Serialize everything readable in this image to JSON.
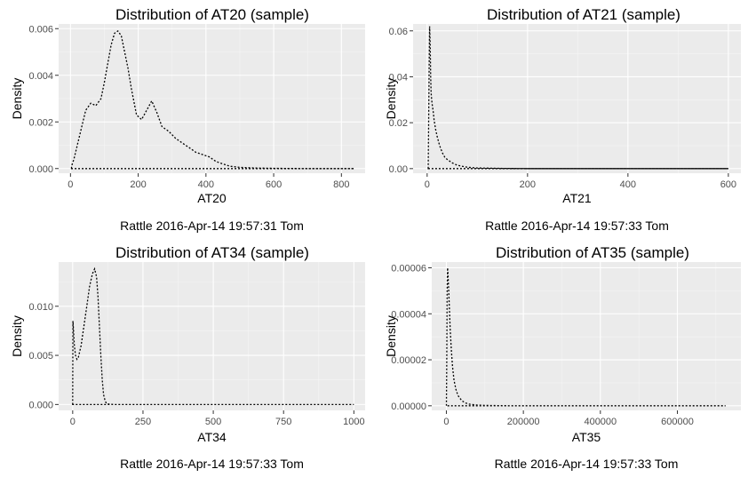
{
  "chart_data": [
    {
      "type": "line",
      "title": "Distribution of AT20 (sample)",
      "xlabel": "AT20",
      "ylabel": "Density",
      "footer": "Rattle 2016-Apr-14 19:57:31 Tom",
      "xlim": [
        -35,
        870
      ],
      "ylim": [
        -0.0002,
        0.0062
      ],
      "xticks": [
        0,
        200,
        400,
        600,
        800
      ],
      "xtick_labels": [
        "0",
        "200",
        "400",
        "600",
        "800"
      ],
      "yticks": [
        0,
        0.002,
        0.004,
        0.006
      ],
      "ytick_labels": [
        "0.000",
        "0.002",
        "0.004",
        "0.006"
      ],
      "grid": true,
      "series": [
        {
          "x": [
            3,
            10,
            25,
            45,
            60,
            75,
            90,
            100,
            110,
            120,
            130,
            140,
            150,
            160,
            170,
            180,
            195,
            210,
            225,
            240,
            255,
            270,
            290,
            310,
            330,
            350,
            370,
            390,
            410,
            430,
            450,
            470,
            500,
            550,
            600,
            700,
            800,
            838
          ],
          "y": [
            0.0001,
            0.0004,
            0.0013,
            0.0025,
            0.0028,
            0.0027,
            0.003,
            0.0037,
            0.0045,
            0.0053,
            0.0058,
            0.0059,
            0.0057,
            0.005,
            0.0043,
            0.0034,
            0.0023,
            0.0021,
            0.0025,
            0.0029,
            0.0024,
            0.0018,
            0.0016,
            0.0013,
            0.0011,
            0.0009,
            0.0007,
            0.0006,
            0.0005,
            0.0003,
            0.0002,
            0.0001,
            5e-05,
            2e-05,
            1e-05,
            0,
            0,
            0
          ]
        }
      ]
    },
    {
      "type": "line",
      "title": "Distribution of AT21 (sample)",
      "xlabel": "AT21",
      "ylabel": "Density",
      "footer": "Rattle 2016-Apr-14 19:57:33 Tom",
      "xlim": [
        -28,
        625
      ],
      "ylim": [
        -0.002,
        0.063
      ],
      "xticks": [
        0,
        200,
        400,
        600
      ],
      "xtick_labels": [
        "0",
        "200",
        "400",
        "600"
      ],
      "yticks": [
        0,
        0.02,
        0.04,
        0.06
      ],
      "ytick_labels": [
        "0.00",
        "0.02",
        "0.04",
        "0.06"
      ],
      "grid": true,
      "series": [
        {
          "x": [
            2,
            3,
            4,
            5,
            6,
            7,
            8,
            9,
            10,
            12,
            14,
            17,
            20,
            25,
            30,
            35,
            40,
            50,
            60,
            70,
            80,
            100,
            150,
            200,
            300,
            400,
            500,
            600
          ],
          "y": [
            0.0,
            0.02,
            0.045,
            0.062,
            0.055,
            0.04,
            0.033,
            0.03,
            0.028,
            0.025,
            0.021,
            0.017,
            0.014,
            0.01,
            0.007,
            0.005,
            0.004,
            0.0025,
            0.0015,
            0.001,
            0.0006,
            0.0003,
            0.0001,
            0,
            0,
            0,
            0,
            0
          ]
        }
      ]
    },
    {
      "type": "line",
      "title": "Distribution of AT34 (sample)",
      "xlabel": "AT34",
      "ylabel": "Density",
      "footer": "Rattle 2016-Apr-14 19:57:33 Tom",
      "xlim": [
        -50,
        1040
      ],
      "ylim": [
        -0.0006,
        0.0145
      ],
      "xticks": [
        0,
        250,
        500,
        750,
        1000
      ],
      "xtick_labels": [
        "0",
        "250",
        "500",
        "750",
        "1000"
      ],
      "yticks": [
        0,
        0.005,
        0.01
      ],
      "ytick_labels": [
        "0.000",
        "0.005",
        "0.010"
      ],
      "grid": true,
      "series": [
        {
          "x": [
            0,
            1,
            3,
            6,
            10,
            15,
            20,
            30,
            40,
            50,
            60,
            70,
            78,
            85,
            90,
            95,
            100,
            105,
            110,
            115,
            120,
            130,
            150,
            200,
            300,
            500,
            700,
            1000
          ],
          "y": [
            0.0,
            0.0085,
            0.0075,
            0.006,
            0.005,
            0.0046,
            0.0048,
            0.006,
            0.008,
            0.01,
            0.012,
            0.0133,
            0.0138,
            0.013,
            0.011,
            0.008,
            0.005,
            0.0025,
            0.001,
            0.0004,
            0.0001,
            3e-05,
            0,
            0,
            0,
            0,
            0,
            0
          ]
        }
      ]
    },
    {
      "type": "line",
      "title": "Distribution of AT35 (sample)",
      "xlabel": "AT35",
      "ylabel": "Density",
      "footer": "Rattle 2016-Apr-14 19:57:33 Tom",
      "xlim": [
        -38000,
        765000
      ],
      "ylim": [
        -2e-06,
        6.25e-05
      ],
      "xticks": [
        0,
        200000,
        400000,
        600000
      ],
      "xtick_labels": [
        "0",
        "200000",
        "400000",
        "600000"
      ],
      "yticks": [
        0,
        2e-05,
        4e-05,
        6e-05
      ],
      "ytick_labels": [
        "0.00000",
        "0.00002",
        "0.00004",
        "0.00006"
      ],
      "grid": true,
      "series": [
        {
          "x": [
            0,
            1000,
            2000,
            3000,
            4000,
            6000,
            8000,
            10000,
            13000,
            16000,
            20000,
            25000,
            30000,
            40000,
            50000,
            60000,
            80000,
            100000,
            150000,
            200000,
            300000,
            400000,
            500000,
            600000,
            725000
          ],
          "y": [
            0.0,
            2e-05,
            5e-05,
            6e-05,
            5.8e-05,
            5e-05,
            4.2e-05,
            3.3e-05,
            2.4e-05,
            1.7e-05,
            1.1e-05,
            7e-06,
            4.5e-06,
            2.2e-06,
            1.2e-06,
            7e-07,
            3e-07,
            1.5e-07,
            5e-08,
            0,
            0,
            0,
            0,
            0,
            0
          ]
        }
      ]
    }
  ]
}
